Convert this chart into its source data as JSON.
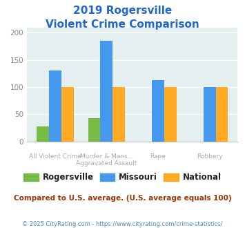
{
  "title_line1": "2019 Rogersville",
  "title_line2": "Violent Crime Comparison",
  "cat_labels_line1": [
    "All Violent Crime",
    "Murder & Mans...",
    "Rape",
    "Robbery"
  ],
  "cat_labels_line2": [
    "",
    "Aggravated Assault",
    "",
    ""
  ],
  "rogersville": [
    28,
    43,
    0,
    0
  ],
  "missouri": [
    130,
    185,
    113,
    100
  ],
  "national": [
    100,
    100,
    100,
    100
  ],
  "color_rogersville": "#77bb44",
  "color_missouri": "#4499ee",
  "color_national": "#ffaa22",
  "ylim": [
    0,
    210
  ],
  "yticks": [
    0,
    50,
    100,
    150,
    200
  ],
  "background_color": "#e4f0f0",
  "subtitle": "Compared to U.S. average. (U.S. average equals 100)",
  "footer": "© 2025 CityRating.com - https://www.cityrating.com/crime-statistics/",
  "title_color": "#2266cc",
  "subtitle_color": "#993300",
  "footer_color": "#4488bb",
  "legend_label_color": "#222222"
}
